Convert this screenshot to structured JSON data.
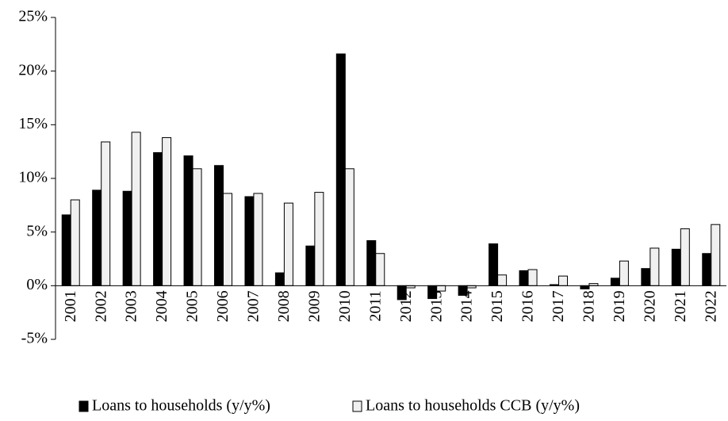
{
  "chart_data": {
    "type": "bar",
    "categories": [
      "2001",
      "2002",
      "2003",
      "2004",
      "2005",
      "2006",
      "2007",
      "2008",
      "2009",
      "2010",
      "2011",
      "2012",
      "2013",
      "2014",
      "2015",
      "2016",
      "2017",
      "2018",
      "2019",
      "2020",
      "2021",
      "2022"
    ],
    "series": [
      {
        "name": "Loans to households (y/y%)",
        "color": "#000000",
        "values": [
          6.6,
          8.9,
          8.8,
          12.4,
          12.1,
          11.2,
          8.3,
          1.2,
          3.7,
          21.6,
          4.2,
          -1.3,
          -1.2,
          -0.9,
          3.9,
          1.4,
          0.1,
          -0.3,
          0.7,
          1.6,
          3.4,
          3.0
        ]
      },
      {
        "name": "Loans to households CCB (y/y%)",
        "color": "#f0f0f0",
        "values": [
          8.0,
          13.4,
          14.3,
          13.8,
          10.9,
          8.6,
          8.6,
          7.7,
          8.7,
          10.9,
          3.0,
          -0.2,
          -0.5,
          -0.2,
          1.0,
          1.5,
          0.9,
          0.2,
          2.3,
          3.5,
          5.3,
          5.7
        ]
      }
    ],
    "ylim": [
      -5,
      25
    ],
    "yticks": [
      {
        "value": -5,
        "label": "-5%"
      },
      {
        "value": 0,
        "label": "0%"
      },
      {
        "value": 5,
        "label": "5%"
      },
      {
        "value": 10,
        "label": "10%"
      },
      {
        "value": 15,
        "label": "15%"
      },
      {
        "value": 20,
        "label": "20%"
      },
      {
        "value": 25,
        "label": "25%"
      }
    ],
    "legend": "bottom"
  }
}
